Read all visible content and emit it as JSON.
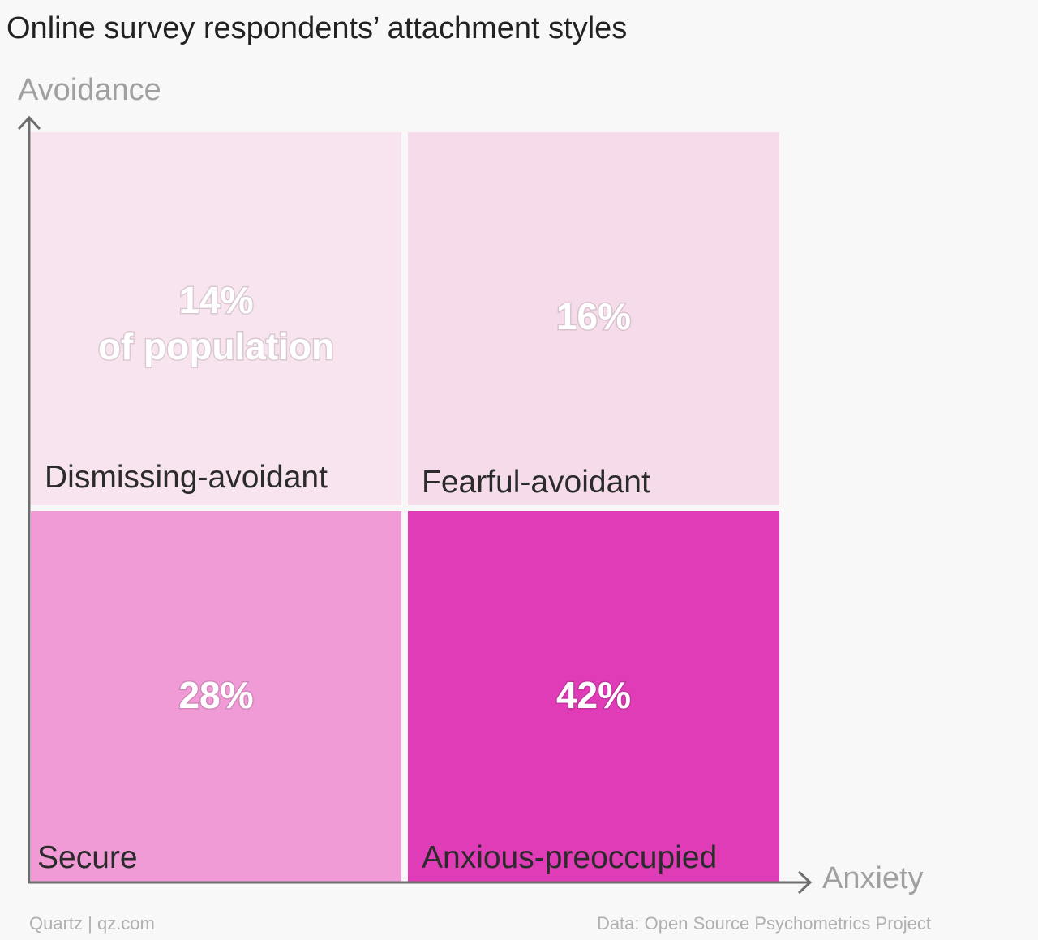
{
  "title": "Online survey respondents’ attachment styles",
  "footer": {
    "credit": "Quartz | qz.com",
    "source": "Data: Open Source Psychometrics Project"
  },
  "chart_data": {
    "type": "quadrant",
    "title": "Online survey respondents’ attachment styles",
    "xlabel": "Anxiety",
    "ylabel": "Avoidance",
    "quadrants": [
      {
        "name": "Dismissing-avoidant",
        "value_label": "14%",
        "sub_label": "of population",
        "value": 14,
        "anxiety": "low",
        "avoidance": "high",
        "color": "#f7e4ee"
      },
      {
        "name": "Fearful-avoidant",
        "value_label": "16%",
        "sub_label": "",
        "value": 16,
        "anxiety": "high",
        "avoidance": "high",
        "color": "#f6dcea"
      },
      {
        "name": "Secure",
        "value_label": "28%",
        "sub_label": "",
        "value": 28,
        "anxiety": "low",
        "avoidance": "low",
        "color": "#f09bd6"
      },
      {
        "name": "Anxious-preoccupied",
        "value_label": "42%",
        "sub_label": "",
        "value": 42,
        "anxiety": "high",
        "avoidance": "low",
        "color": "#e03cb8"
      }
    ],
    "colors": {
      "axis": "#6e6e6e",
      "axis_label": "#a0a0a0",
      "name_text": "#2b2b2b",
      "value_text": "#ffffff"
    }
  }
}
